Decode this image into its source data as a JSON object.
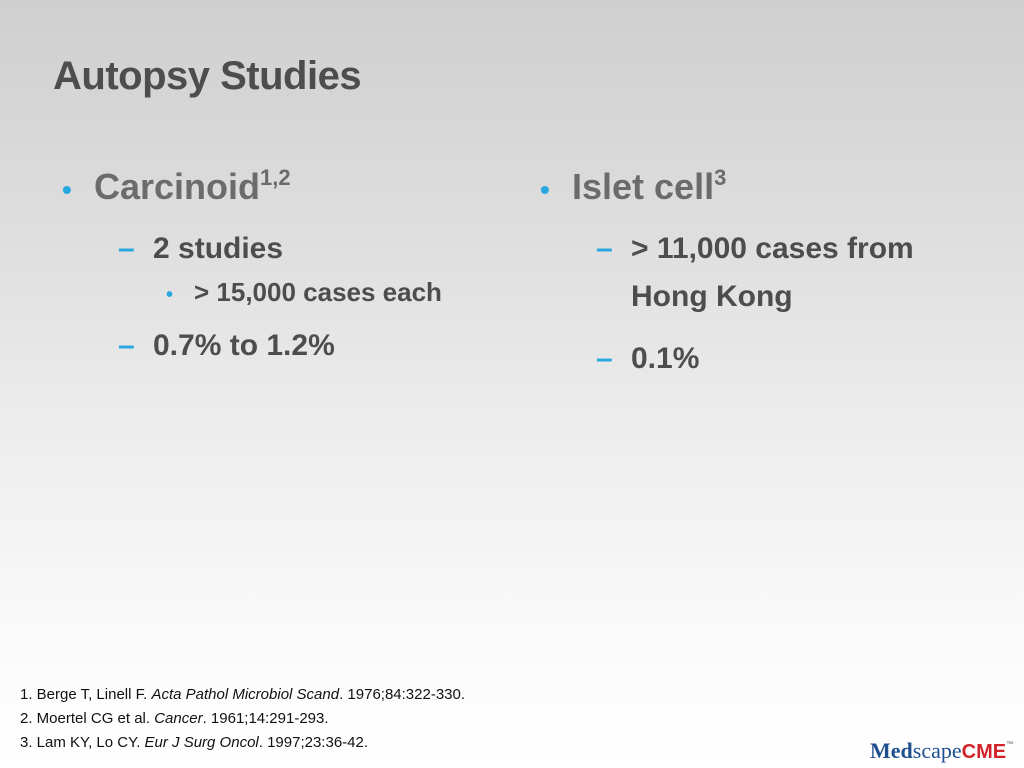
{
  "slide": {
    "title": "Autopsy Studies"
  },
  "left_column": {
    "heading": "Carcinoid",
    "heading_sup": "1,2",
    "items": [
      {
        "text": "2 studies"
      },
      {
        "text": "> 15,000 cases each"
      },
      {
        "text": "0.7% to 1.2%"
      }
    ]
  },
  "right_column": {
    "heading": "Islet cell",
    "heading_sup": "3",
    "items": [
      {
        "text": "> 11,000 cases from Hong Kong"
      },
      {
        "text": "0.1%"
      }
    ]
  },
  "bullet_glyph": "•",
  "dash_glyph": "–",
  "references": [
    {
      "prefix": "1. Berge T, Linell F. ",
      "journal": "Acta Pathol Microbiol Scand",
      "suffix": ". 1976;84:322-330."
    },
    {
      "prefix": "2. Moertel CG et al. ",
      "journal": "Cancer",
      "suffix": ". 1961;14:291-293."
    },
    {
      "prefix": "3. Lam KY, Lo CY. ",
      "journal": "Eur J Surg Oncol",
      "suffix": ". 1997;23:36-42."
    }
  ],
  "logo": {
    "med": "Med",
    "scape": "scape",
    "cme": "CME",
    "tm": "™"
  },
  "colors": {
    "accent": "#29a8e0",
    "title": "#4d4d4d",
    "logo_blue": "#1e4f8f",
    "logo_red": "#d2232a"
  }
}
